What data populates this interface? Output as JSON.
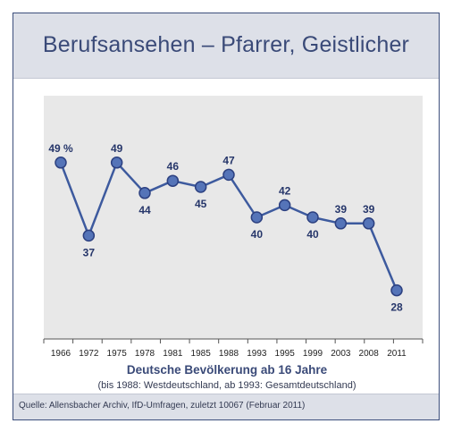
{
  "title": "Berufsansehen – Pfarrer, Geistlicher",
  "source": "Quelle: Allensbacher Archiv, IfD-Umfragen, zuletzt 10067 (Februar 2011)",
  "chart_data": {
    "type": "line",
    "title": "Berufsansehen – Pfarrer, Geistlicher",
    "xlabel": "Deutsche Bevölkerung ab 16 Jahre",
    "xlabel_sub": "(bis 1988: Westdeutschland, ab 1993: Gesamtdeutschland)",
    "ylabel": "",
    "categories": [
      "1966",
      "1972",
      "1975",
      "1978",
      "1981",
      "1985",
      "1988",
      "1993",
      "1995",
      "1999",
      "2003",
      "2008",
      "2011"
    ],
    "values": [
      49,
      37,
      49,
      44,
      46,
      45,
      47,
      40,
      42,
      40,
      39,
      39,
      28
    ],
    "value_labels": [
      "49 %",
      "37",
      "49",
      "44",
      "46",
      "45",
      "47",
      "40",
      "42",
      "40",
      "39",
      "39",
      "28"
    ],
    "label_positions": [
      "above",
      "below",
      "above",
      "below",
      "above",
      "below",
      "above",
      "below",
      "above",
      "below",
      "above",
      "above",
      "below"
    ],
    "ylim": [
      20,
      60
    ],
    "grid": false,
    "colors": {
      "line": "#3d5a9e",
      "marker": "#5574b8",
      "marker_edge": "#2c4080",
      "plot_bg": "#e8e8e8",
      "band": "#dde0e8",
      "text": "#3a4a78"
    }
  }
}
